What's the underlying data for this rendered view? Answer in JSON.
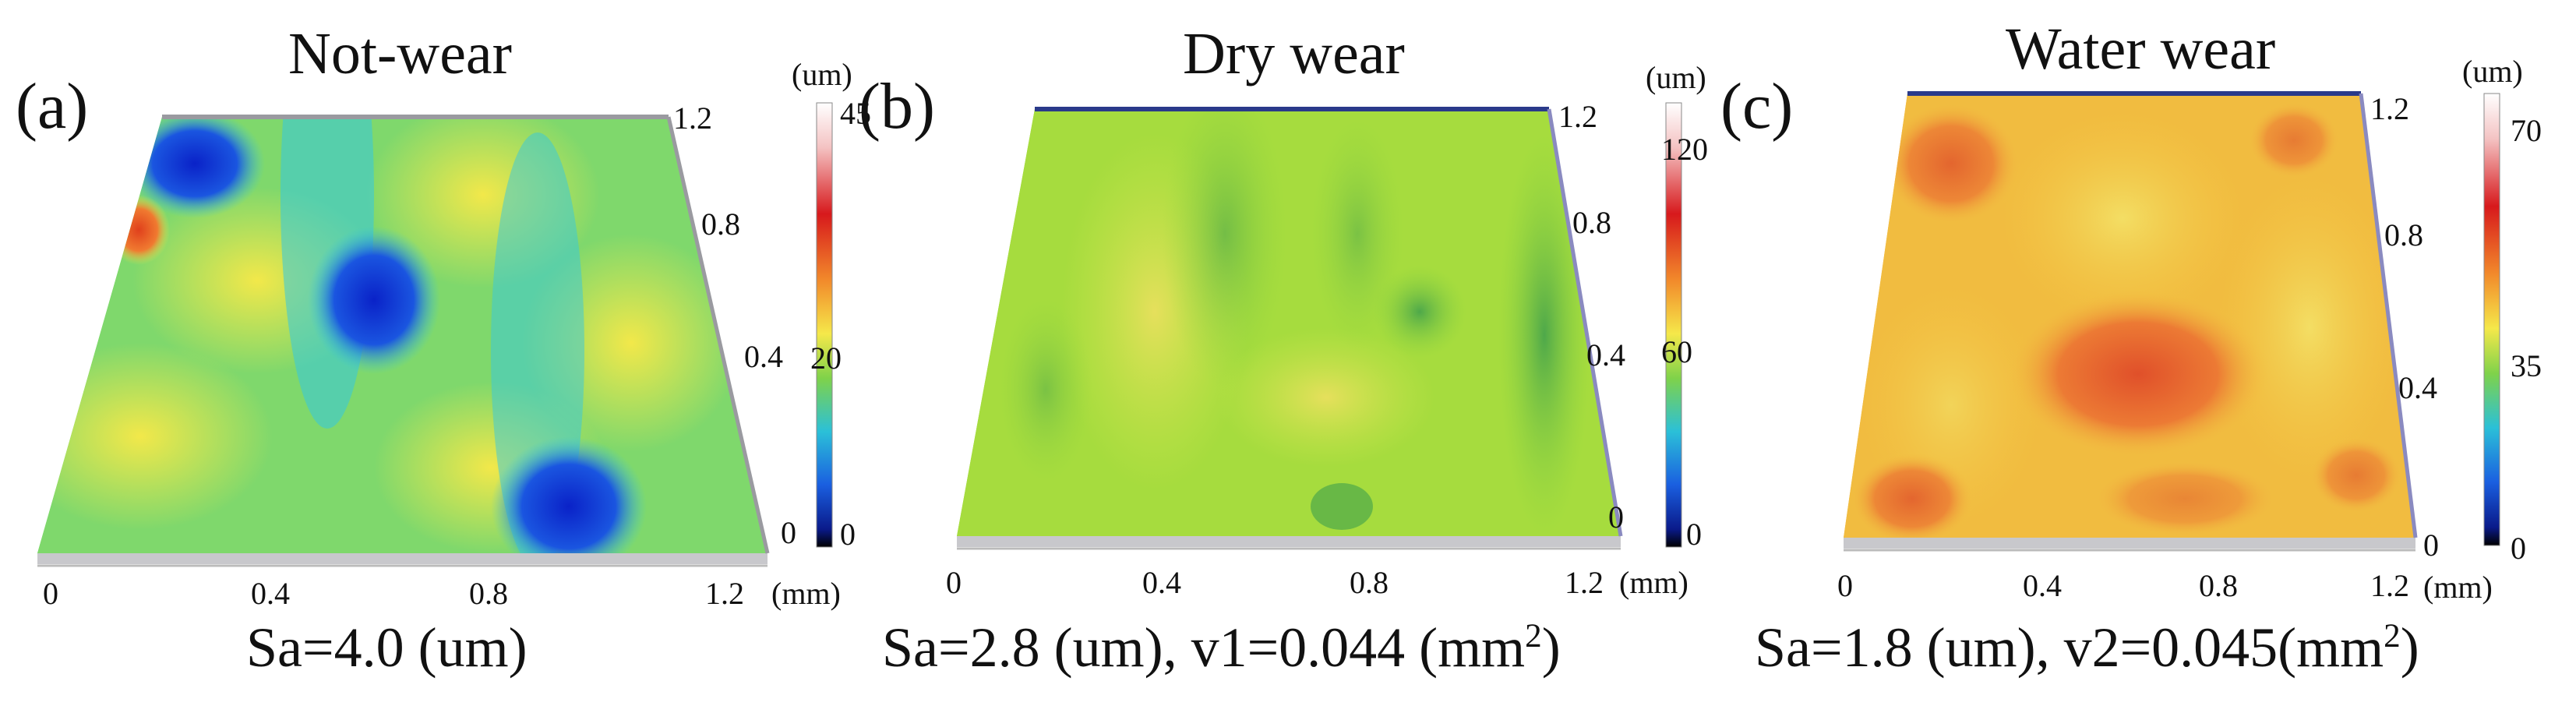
{
  "panels": [
    {
      "letter": "(a)",
      "title": "Not-wear",
      "sa_prefix": "Sa=4.0 (um)",
      "sa_suffix": "",
      "sa_sup": "",
      "sa_close": "",
      "x_ticks": [
        "0",
        "0.4",
        "0.8",
        "1.2",
        "(mm)"
      ],
      "y_ticks": [
        "1.2",
        "0.8",
        "0.4",
        "0"
      ],
      "colorbar": {
        "unit": "(um)",
        "labels": [
          "45",
          "20",
          "0"
        ],
        "max": 45,
        "min": 0
      },
      "surface_palette": [
        "#0a2fd0",
        "#35c8e0",
        "#b7ec6a",
        "#f2e84a",
        "#f07a30"
      ]
    },
    {
      "letter": "(b)",
      "title": "Dry wear",
      "sa_prefix": "Sa=2.8 (um),  v1=0.044 (mm",
      "sa_suffix": "",
      "sa_sup": "2",
      "sa_close": ")",
      "x_ticks": [
        "0",
        "0.4",
        "0.8",
        "1.2",
        "(mm)"
      ],
      "y_ticks": [
        "1.2",
        "0.8",
        "0.4",
        "0"
      ],
      "colorbar": {
        "unit": "(um)",
        "labels": [
          "120",
          "60",
          "0"
        ],
        "max": 120,
        "min": 0
      },
      "surface_palette": [
        "#8fd640",
        "#a8e23a",
        "#c9e44a",
        "#5fb84a",
        "#e2df5c"
      ]
    },
    {
      "letter": "(c)",
      "title": "Water wear",
      "sa_prefix": "Sa=1.8 (um),  v2=0.045(mm",
      "sa_suffix": "",
      "sa_sup": "2",
      "sa_close": ")",
      "x_ticks": [
        "0",
        "0.4",
        "0.8",
        "1.2",
        "(mm)"
      ],
      "y_ticks": [
        "1.2",
        "0.8",
        "0.4",
        "0"
      ],
      "colorbar": {
        "unit": "(um)",
        "labels": [
          "70",
          "35",
          "0"
        ],
        "max": 70,
        "min": 0
      },
      "surface_palette": [
        "#f5a23a",
        "#f3c542",
        "#e96a2e",
        "#f0d65a",
        "#d8402a"
      ]
    }
  ],
  "colors": {
    "jet_stops": [
      "#ffffff",
      "#f4c3c3",
      "#d7191c",
      "#f28a2b",
      "#f5e84a",
      "#7fd24a",
      "#2bc0d8",
      "#1a5fe0",
      "#0a1a8a",
      "#000000"
    ]
  }
}
